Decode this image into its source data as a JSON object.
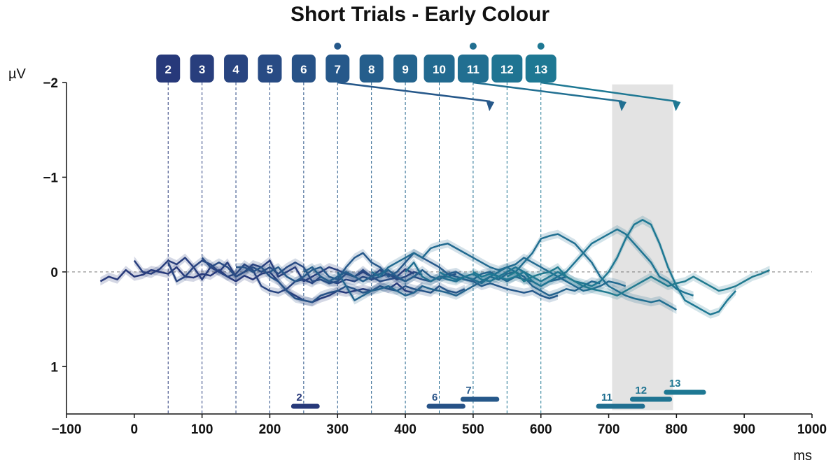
{
  "chart_data": {
    "type": "line",
    "title": "Short Trials - Early Colour",
    "xlabel": "ms",
    "ylabel": "µV",
    "xlim": [
      -100,
      1000
    ],
    "ylim": [
      1.5,
      -2
    ],
    "y_inverted": true,
    "x_ticks": [
      "−100",
      "0",
      "100",
      "200",
      "300",
      "400",
      "500",
      "600",
      "700",
      "800",
      "900",
      "1000"
    ],
    "x_tick_values": [
      -100,
      0,
      100,
      200,
      300,
      400,
      500,
      600,
      700,
      800,
      900,
      1000
    ],
    "y_ticks": [
      "−2",
      "−1",
      "0",
      "1"
    ],
    "y_tick_values": [
      -2,
      -1,
      0,
      1
    ],
    "grid": false,
    "zero_line": true,
    "shaded_window": [
      705,
      795
    ],
    "stimulus_markers": [
      {
        "label": "2",
        "x": 50,
        "color": "#27397a",
        "dot": false
      },
      {
        "label": "3",
        "x": 100,
        "color": "#283e7d",
        "dot": false
      },
      {
        "label": "4",
        "x": 150,
        "color": "#284480",
        "dot": false
      },
      {
        "label": "5",
        "x": 200,
        "color": "#284b84",
        "dot": false
      },
      {
        "label": "6",
        "x": 250,
        "color": "#275287",
        "dot": false
      },
      {
        "label": "7",
        "x": 300,
        "color": "#26588a",
        "dot": true
      },
      {
        "label": "8",
        "x": 350,
        "color": "#255e8c",
        "dot": false
      },
      {
        "label": "9",
        "x": 400,
        "color": "#24648e",
        "dot": false
      },
      {
        "label": "10",
        "x": 450,
        "color": "#226a90",
        "dot": false
      },
      {
        "label": "11",
        "x": 500,
        "color": "#216f91",
        "dot": true
      },
      {
        "label": "12",
        "x": 550,
        "color": "#1f7492",
        "dot": false
      },
      {
        "label": "13",
        "x": 600,
        "color": "#1e7893",
        "dot": true
      }
    ],
    "arrows": [
      {
        "from": 300,
        "to": 525,
        "color": "#26588a"
      },
      {
        "from": 500,
        "to": 720,
        "color": "#216f91"
      },
      {
        "from": 600,
        "to": 800,
        "color": "#1e7893"
      }
    ],
    "significance_bars": [
      {
        "label": "2",
        "start": 235,
        "end": 270,
        "color": "#27397a"
      },
      {
        "label": "6",
        "start": 435,
        "end": 485,
        "color": "#275287"
      },
      {
        "label": "7",
        "start": 485,
        "end": 535,
        "color": "#26588a"
      },
      {
        "label": "11",
        "start": 685,
        "end": 750,
        "color": "#216f91"
      },
      {
        "label": "12",
        "start": 735,
        "end": 790,
        "color": "#1f7492"
      },
      {
        "label": "13",
        "start": 785,
        "end": 840,
        "color": "#1e7893"
      }
    ],
    "series": [
      {
        "color": "#27397a",
        "start": -50,
        "values": [
          0.1,
          0.05,
          0.08,
          -0.02,
          0.05,
          0.03,
          -0.02,
          0.0,
          0.02,
          -0.05,
          0.05,
          0.06,
          0.02,
          0.04,
          -0.02,
          0.05,
          0.1,
          0.04,
          0.08,
          0.02,
          0.0,
          0.1,
          0.2,
          0.25,
          0.3,
          0.32,
          0.28,
          0.25,
          0.2,
          0.22,
          0.2,
          0.18,
          0.2,
          0.15,
          0.18,
          0.12,
          0.2,
          0.22,
          0.15
        ]
      },
      {
        "color": "#283e7d",
        "start": 0,
        "values": [
          -0.12,
          0.0,
          0.02,
          -0.03,
          -0.12,
          -0.08,
          -0.15,
          -0.05,
          0.08,
          -0.05,
          0.0,
          -0.1,
          0.05,
          0.0,
          -0.08,
          -0.05,
          -0.12,
          0.05,
          0.0,
          -0.05,
          0.1,
          0.05,
          0.0,
          -0.05,
          -0.02,
          0.02,
          0.05,
          0.0,
          0.05,
          -0.02,
          0.03,
          0.05,
          -0.03,
          0.02
        ]
      },
      {
        "color": "#284480",
        "start": 50,
        "values": [
          -0.1,
          0.1,
          0.05,
          -0.05,
          -0.12,
          -0.08,
          0.0,
          0.05,
          0.02,
          -0.08,
          -0.02,
          0.15,
          0.2,
          0.22,
          0.18,
          0.1,
          0.08,
          0.12,
          0.05,
          0.1,
          0.12,
          0.08,
          0.1,
          0.05,
          0.08,
          0.05,
          0.02,
          0.08,
          0.05,
          0.0,
          0.03
        ]
      },
      {
        "color": "#284b84",
        "start": 100,
        "values": [
          -0.15,
          -0.05,
          -0.1,
          -0.05,
          0.05,
          0.0,
          -0.05,
          0.0,
          -0.05,
          0.02,
          -0.05,
          -0.1,
          -0.05,
          0.1,
          0.08,
          0.12,
          0.1,
          0.02,
          0.05,
          -0.02,
          0.05,
          0.1,
          0.08,
          0.06,
          0.1,
          0.05,
          0.08,
          0.1,
          0.05,
          0.05,
          0.02
        ]
      },
      {
        "color": "#275287",
        "start": 150,
        "values": [
          -0.05,
          -0.05,
          0.0,
          -0.05,
          0.05,
          0.1,
          0.2,
          0.28,
          0.3,
          0.32,
          0.25,
          0.22,
          0.2,
          0.15,
          0.18,
          0.22,
          0.2,
          0.15,
          0.18,
          0.2,
          0.15,
          0.18,
          0.2,
          0.22,
          0.15,
          0.2,
          0.22,
          0.18
        ]
      },
      {
        "color": "#26588a",
        "start": 200,
        "values": [
          0.0,
          -0.05,
          0.05,
          0.1,
          0.05,
          -0.02,
          -0.05,
          0.05,
          0.08,
          -0.05,
          -0.15,
          -0.2,
          -0.1,
          -0.05,
          0.05,
          0.0,
          -0.1,
          -0.2,
          -0.15,
          -0.1,
          -0.05,
          0.02,
          0.05,
          0.08,
          0.1,
          0.15,
          0.12,
          0.15,
          0.18,
          0.2,
          0.22,
          0.2,
          0.25,
          0.28,
          0.25
        ]
      },
      {
        "color": "#255e8c",
        "start": 250,
        "values": [
          0.0,
          -0.05,
          0.05,
          0.1,
          0.05,
          0.0,
          0.05,
          0.1,
          0.05,
          0.02,
          -0.02,
          0.05,
          0.1,
          0.05,
          -0.02,
          0.05,
          0.08,
          0.02,
          0.0,
          0.05,
          0.08,
          0.02,
          0.0,
          0.05,
          0.1,
          0.05,
          0.08,
          0.1,
          0.15,
          0.1,
          0.08,
          0.05
        ]
      },
      {
        "color": "#24648e",
        "start": 300,
        "values": [
          0.0,
          0.15,
          0.3,
          0.25,
          0.2,
          0.18,
          0.15,
          0.2,
          0.25,
          0.22,
          0.15,
          0.18,
          0.2,
          0.22,
          0.25,
          0.2,
          0.15,
          0.1,
          0.05,
          0.08,
          0.02,
          0.0,
          0.05,
          0.15,
          0.2,
          0.25,
          0.22,
          0.18,
          0.2,
          0.15,
          0.1,
          0.12
        ]
      },
      {
        "color": "#226a90",
        "start": 350,
        "values": [
          0.0,
          0.05,
          -0.05,
          -0.1,
          -0.15,
          -0.2,
          -0.15,
          -0.25,
          -0.28,
          -0.3,
          -0.25,
          -0.2,
          -0.15,
          -0.1,
          -0.05,
          -0.02,
          -0.05,
          -0.08,
          -0.15,
          -0.1,
          -0.05,
          0.0,
          0.05,
          0.1,
          0.15,
          0.2,
          0.18,
          0.15,
          0.1,
          0.12,
          0.15
        ]
      },
      {
        "color": "#216f91",
        "start": 400,
        "values": [
          0.0,
          -0.1,
          0.05,
          0.1,
          0.05,
          0.08,
          0.1,
          0.05,
          0.08,
          0.12,
          0.05,
          0.0,
          -0.05,
          0.0,
          -0.1,
          -0.2,
          -0.35,
          -0.38,
          -0.4,
          -0.35,
          -0.3,
          -0.2,
          -0.1,
          0.05,
          0.15,
          0.2,
          0.25,
          0.28,
          0.3,
          0.32,
          0.3,
          0.35,
          0.4
        ]
      },
      {
        "color": "#1f7492",
        "start": 450,
        "values": [
          0.0,
          0.05,
          0.08,
          0.05,
          0.02,
          0.08,
          0.1,
          0.05,
          0.0,
          -0.05,
          0.0,
          0.1,
          0.15,
          0.1,
          0.05,
          0.0,
          -0.1,
          -0.2,
          -0.3,
          -0.35,
          -0.4,
          -0.45,
          -0.4,
          -0.3,
          -0.2,
          -0.1,
          0.05,
          0.1,
          0.18,
          0.22,
          0.25
        ]
      },
      {
        "color": "#1e7893",
        "start": 500,
        "values": [
          0.0,
          0.05,
          0.02,
          0.05,
          0.08,
          0.05,
          0.0,
          0.05,
          0.1,
          0.05,
          0.0,
          0.05,
          0.1,
          0.12,
          0.15,
          0.1,
          0.0,
          -0.15,
          -0.35,
          -0.5,
          -0.55,
          -0.5,
          -0.3,
          -0.05,
          0.15,
          0.3,
          0.35,
          0.4,
          0.45,
          0.42,
          0.3,
          0.2
        ]
      },
      {
        "color": "#217a8f",
        "start": 550,
        "values": [
          0.05,
          0.0,
          0.1,
          0.05,
          0.02,
          0.0,
          -0.05,
          0.05,
          0.1,
          0.15,
          0.18,
          0.2,
          0.22,
          0.25,
          0.2,
          0.15,
          0.1,
          0.05,
          0.1,
          0.15,
          0.12,
          0.1,
          0.05,
          0.1,
          0.15,
          0.2,
          0.18,
          0.15,
          0.1,
          0.05,
          0.02,
          -0.02
        ]
      }
    ]
  }
}
